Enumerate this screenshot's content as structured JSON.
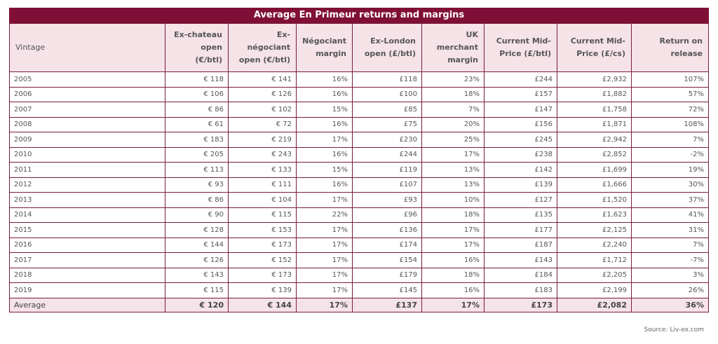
{
  "chart_data": {
    "type": "table",
    "title": "Average En Primeur returns and margins",
    "columns": [
      "Vintage",
      "Ex-chateau open (€/btl)",
      "Ex-négociant open (€/btl)",
      "Négociant margin",
      "Ex-London open (£/btl)",
      "UK merchant margin",
      "Current Mid-Price (£/btl)",
      "Current Mid-Price (£/cs)",
      "Return on release"
    ],
    "rows": [
      [
        "2005",
        "€ 118",
        "€ 141",
        "16%",
        "£118",
        "23%",
        "£244",
        "£2,932",
        "107%"
      ],
      [
        "2006",
        "€ 106",
        "€ 126",
        "16%",
        "£100",
        "18%",
        "£157",
        "£1,882",
        "57%"
      ],
      [
        "2007",
        "€ 86",
        "€ 102",
        "15%",
        "£85",
        "7%",
        "£147",
        "£1,758",
        "72%"
      ],
      [
        "2008",
        "€ 61",
        "€ 72",
        "16%",
        "£75",
        "20%",
        "£156",
        "£1,871",
        "108%"
      ],
      [
        "2009",
        "€ 183",
        "€ 219",
        "17%",
        "£230",
        "25%",
        "£245",
        "£2,942",
        "7%"
      ],
      [
        "2010",
        "€ 205",
        "€ 243",
        "16%",
        "£244",
        "17%",
        "£238",
        "£2,852",
        "-2%"
      ],
      [
        "2011",
        "€ 113",
        "€ 133",
        "15%",
        "£119",
        "13%",
        "£142",
        "£1,699",
        "19%"
      ],
      [
        "2012",
        "€ 93",
        "€ 111",
        "16%",
        "£107",
        "13%",
        "£139",
        "£1,666",
        "30%"
      ],
      [
        "2013",
        "€ 86",
        "€ 104",
        "17%",
        "£93",
        "10%",
        "£127",
        "£1,520",
        "37%"
      ],
      [
        "2014",
        "€ 90",
        "€ 115",
        "22%",
        "£96",
        "18%",
        "£135",
        "£1,623",
        "41%"
      ],
      [
        "2015",
        "€ 128",
        "€ 153",
        "17%",
        "£136",
        "17%",
        "£177",
        "£2,125",
        "31%"
      ],
      [
        "2016",
        "€ 144",
        "€ 173",
        "17%",
        "£174",
        "17%",
        "£187",
        "£2,240",
        "7%"
      ],
      [
        "2017",
        "€ 126",
        "€ 152",
        "17%",
        "£154",
        "16%",
        "£143",
        "£1,712",
        "-7%"
      ],
      [
        "2018",
        "€ 143",
        "€ 173",
        "17%",
        "£179",
        "18%",
        "£184",
        "£2,205",
        "3%"
      ],
      [
        "2019",
        "€ 115",
        "€ 139",
        "17%",
        "£145",
        "16%",
        "£183",
        "£2,199",
        "26%"
      ]
    ],
    "footer": [
      "Average",
      "€ 120",
      "€ 144",
      "17%",
      "£137",
      "17%",
      "£173",
      "£2,082",
      "36%"
    ]
  },
  "source": "Source: Liv-ex.com",
  "colors": {
    "title_bg": "#800f37",
    "header_bg": "#f5e3e8",
    "border": "#7a1c3c"
  }
}
